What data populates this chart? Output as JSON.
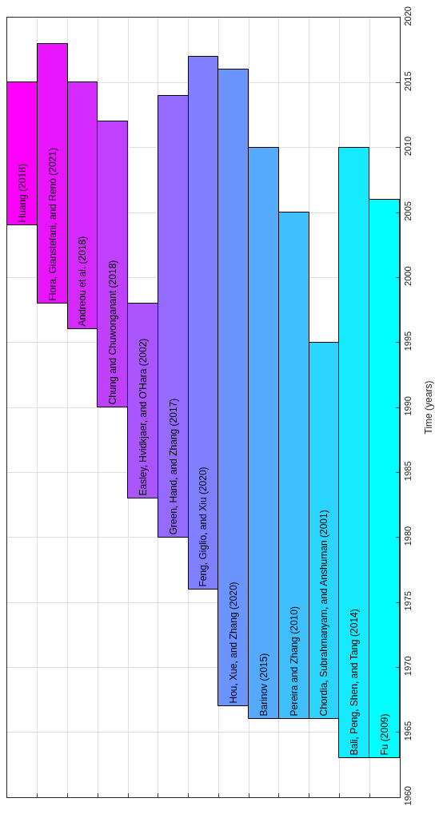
{
  "chart_data": {
    "type": "bar",
    "ylabel": "Time (years)",
    "categories": [
      "Huang (2018)",
      "Flora, Gianstefani, and Renò (2021)",
      "Andreou et al. (2018)",
      "Chung and Chuwonganant (2018)",
      "Easley, Hvidkjaer, and O'Hara (2002)",
      "Green, Hand, and Zhang (2017)",
      "Feng, Giglio, and Xiu (2020)",
      "Hou, Xue, and Zhang (2020)",
      "Barinov (2015)",
      "Pereira and Zhang (2010)",
      "Chordia, Subrahmanyam, and Anshuman (2001)",
      "Bali, Peng, Shen, and Tang (2014)",
      "Fu (2009)"
    ],
    "base": [
      2004,
      1998,
      1996,
      1990,
      1983,
      1980,
      1976,
      1967,
      1966,
      1966,
      1966,
      1963,
      1963
    ],
    "values": [
      11,
      20,
      19,
      22,
      15,
      34,
      41,
      49,
      44,
      39,
      29,
      47,
      43
    ],
    "colors": [
      "#ff00ff",
      "#ea15ff",
      "#d52aff",
      "#bf40ff",
      "#aa55ff",
      "#956aff",
      "#8080ff",
      "#6a95ff",
      "#55aaff",
      "#40bfff",
      "#2ad5ff",
      "#15eaff",
      "#00ffff"
    ],
    "ylim": [
      1960,
      2020
    ],
    "yticks": [
      1960,
      1965,
      1970,
      1975,
      1980,
      1985,
      1990,
      1995,
      2000,
      2005,
      2010,
      2015,
      2020
    ],
    "grid": true,
    "tick_labels": "y"
  }
}
